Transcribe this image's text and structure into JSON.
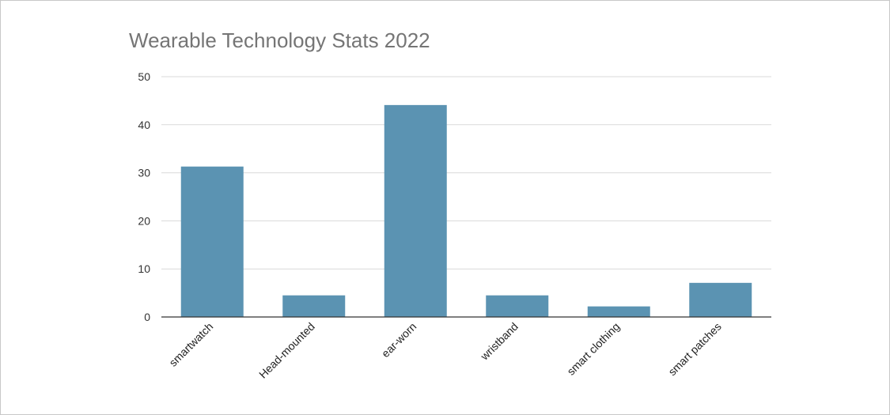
{
  "chart_data": {
    "type": "bar",
    "title": "Wearable Technology Stats 2022",
    "xlabel": "",
    "ylabel": "",
    "categories": [
      "smartwatch",
      "Head-mounted",
      "ear-worn",
      "wristband",
      "smart clothing",
      "smart patches"
    ],
    "values": [
      31.3,
      4.5,
      44.1,
      4.5,
      2.2,
      7.1
    ],
    "ylim": [
      0,
      50
    ],
    "yticks": [
      0,
      10,
      20,
      30,
      40,
      50
    ],
    "grid": true,
    "legend": "none",
    "bar_color": "#5b93b2",
    "grid_color": "#d9d9d9",
    "axis_color": "#333333"
  }
}
